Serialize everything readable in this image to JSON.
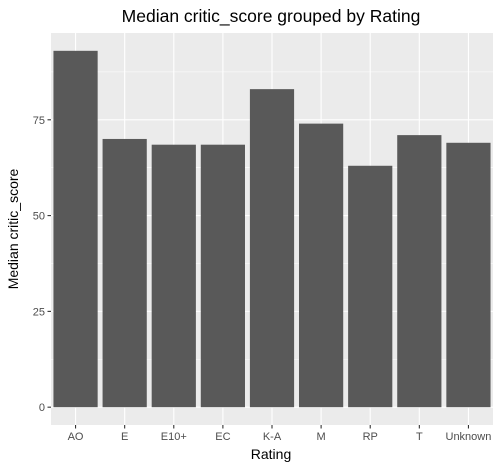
{
  "chart_data": {
    "type": "bar",
    "title": "Median critic_score grouped by Rating",
    "xlabel": "Rating",
    "ylabel": "Median critic_score",
    "categories": [
      "AO",
      "E",
      "E10+",
      "EC",
      "K-A",
      "M",
      "RP",
      "T",
      "Unknown"
    ],
    "values": [
      93,
      70,
      68.5,
      68.5,
      83,
      74,
      63,
      71,
      69
    ],
    "ylim": [
      -4.65,
      97.65
    ],
    "yticks": [
      0,
      25,
      50,
      75
    ],
    "grid": true,
    "colors": {
      "panel": "#ebebeb",
      "grid_major": "#ffffff",
      "bar": "#595959",
      "text": "#000000",
      "tick_text": "#4d4d4d",
      "tick_mark": "#333333"
    }
  }
}
